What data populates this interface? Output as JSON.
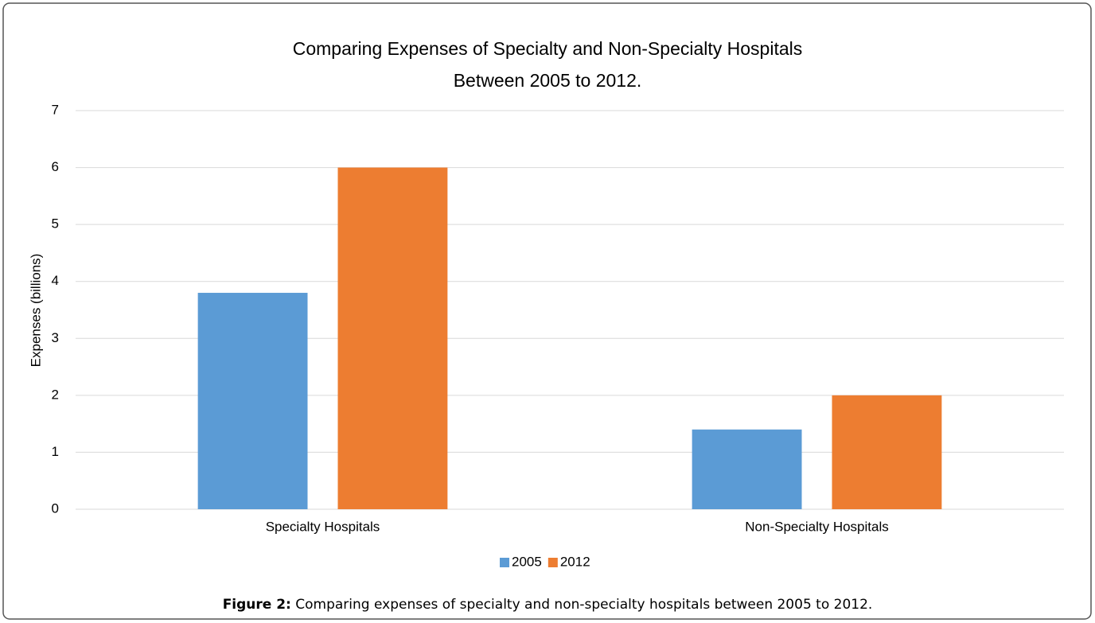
{
  "chart_data": {
    "type": "bar",
    "title": "Comparing Expenses of Specialty and Non-Specialty Hospitals",
    "subtitle": "Between 2005 to 2012.",
    "y_label": "Expenses (billions)",
    "categories": [
      "Specialty Hospitals",
      "Non-Specialty Hospitals"
    ],
    "series": [
      {
        "name": "2005",
        "color": "#5b9bd5",
        "values": [
          3.8,
          1.4
        ]
      },
      {
        "name": "2012",
        "color": "#ed7d31",
        "values": [
          6.0,
          2.0
        ]
      }
    ],
    "ylim": [
      0,
      7
    ],
    "yticks": [
      0,
      1,
      2,
      3,
      4,
      5,
      6,
      7
    ],
    "grid": true,
    "legend": "bottom"
  },
  "caption": {
    "label": "Figure 2:",
    "text": "Comparing expenses of specialty and non-specialty hospitals between 2005 to 2012."
  }
}
